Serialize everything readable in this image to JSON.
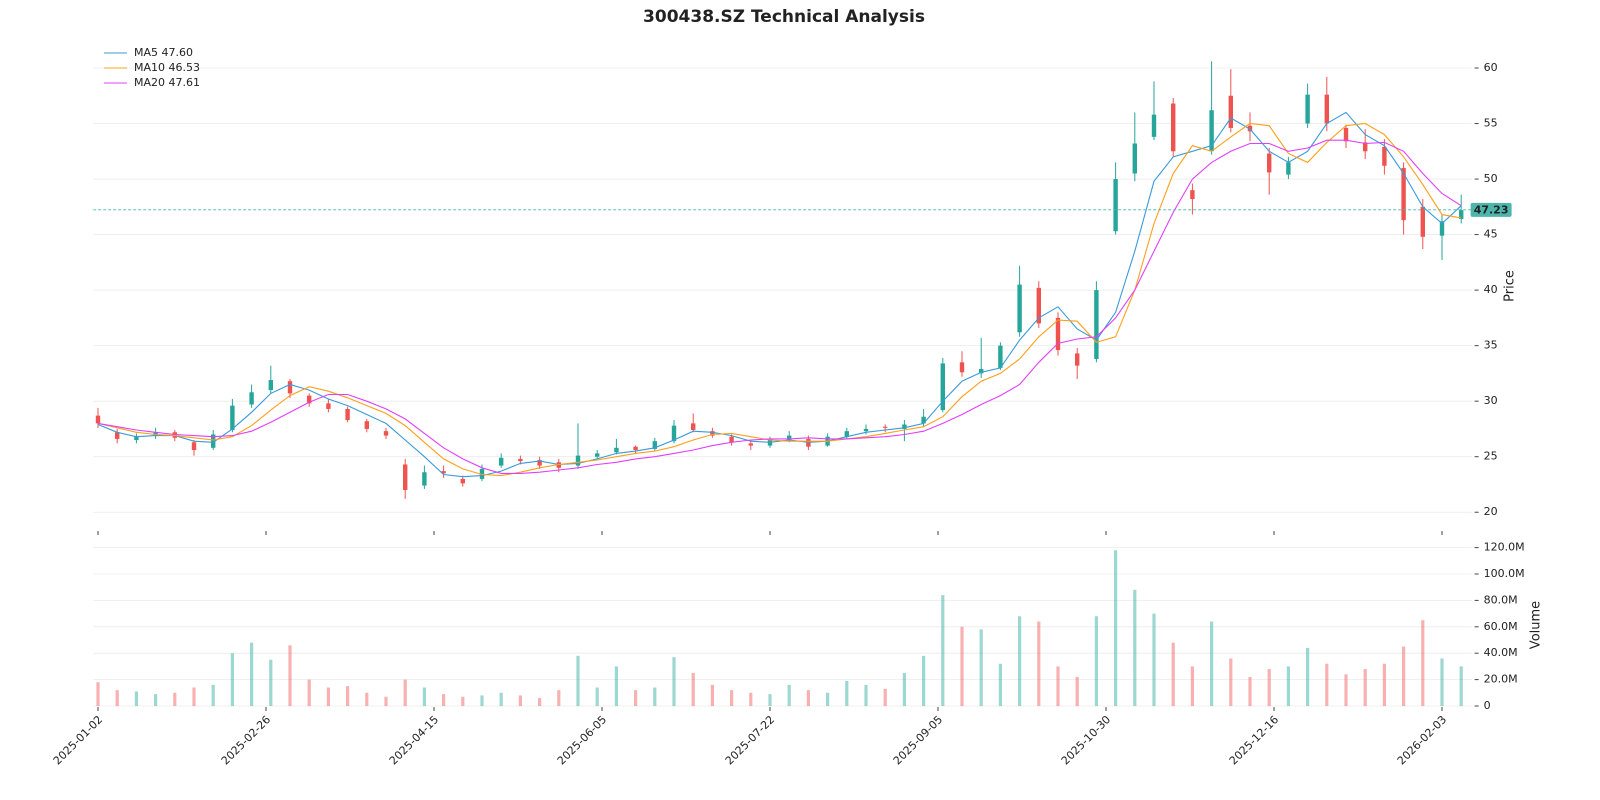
{
  "chart_data": [
    {
      "type": "candlestick",
      "title": "300438.SZ Technical Analysis",
      "y_label": "Price",
      "up_color": "#26a69a",
      "down_color": "#ef5350",
      "grid": true,
      "xlim": [
        -1,
        287
      ],
      "ylim": [
        18.4,
        60.9
      ],
      "yticks": [
        20,
        25,
        30,
        35,
        40,
        45,
        50,
        55,
        60
      ],
      "x": [
        0,
        4,
        8,
        12,
        16,
        20,
        24,
        28,
        32,
        36,
        40,
        44,
        48,
        52,
        56,
        60,
        64,
        68,
        72,
        76,
        80,
        84,
        88,
        92,
        96,
        100,
        104,
        108,
        112,
        116,
        120,
        124,
        128,
        132,
        136,
        140,
        144,
        148,
        152,
        156,
        160,
        164,
        168,
        172,
        176,
        180,
        184,
        188,
        192,
        196,
        200,
        204,
        208,
        212,
        216,
        220,
        224,
        228,
        232,
        236,
        240,
        244,
        248,
        252,
        256,
        260,
        264,
        268,
        272,
        276,
        280,
        284
      ],
      "open": [
        28.7,
        27.2,
        26.5,
        26.9,
        27.2,
        26.3,
        25.8,
        27.4,
        29.7,
        31.0,
        31.8,
        30.5,
        29.8,
        29.3,
        28.2,
        27.3,
        24.3,
        22.4,
        23.7,
        23.0,
        23.0,
        24.2,
        24.8,
        24.7,
        24.5,
        24.2,
        25.0,
        25.4,
        25.9,
        25.7,
        26.4,
        28.0,
        27.3,
        26.8,
        26.2,
        26.0,
        26.5,
        26.6,
        26.0,
        26.8,
        27.3,
        27.7,
        27.5,
        28.0,
        29.2,
        33.5,
        32.5,
        33.0,
        36.2,
        40.2,
        37.5,
        34.3,
        33.8,
        45.3,
        50.5,
        53.8,
        56.8,
        49.0,
        52.5,
        57.5,
        54.8,
        52.3,
        50.4,
        55.0,
        57.6,
        54.6,
        53.3,
        52.9,
        51.0,
        47.5,
        44.9,
        46.4
      ],
      "high": [
        29.4,
        27.5,
        27.1,
        27.6,
        27.4,
        26.5,
        27.4,
        30.2,
        31.5,
        33.2,
        32.0,
        30.7,
        30.2,
        29.5,
        28.4,
        27.6,
        24.8,
        24.2,
        24.2,
        23.3,
        24.3,
        25.3,
        25.1,
        25.0,
        24.8,
        28.0,
        25.6,
        26.6,
        26.0,
        26.7,
        28.3,
        28.9,
        27.6,
        27.0,
        26.5,
        26.8,
        27.3,
        26.9,
        27.1,
        27.6,
        27.9,
        27.9,
        28.3,
        29.3,
        33.9,
        34.5,
        35.7,
        35.3,
        42.2,
        40.8,
        38.0,
        34.8,
        40.8,
        51.5,
        56.0,
        58.8,
        57.3,
        49.6,
        60.6,
        59.9,
        56.0,
        52.8,
        52.0,
        58.6,
        59.2,
        54.9,
        54.5,
        53.6,
        51.5,
        48.2,
        46.8,
        48.6
      ],
      "low": [
        27.6,
        26.2,
        26.2,
        26.6,
        26.4,
        25.1,
        25.6,
        27.2,
        29.4,
        30.7,
        30.3,
        29.5,
        29.0,
        28.1,
        27.2,
        26.6,
        21.2,
        22.1,
        23.1,
        22.3,
        22.8,
        24.0,
        24.3,
        23.9,
        23.6,
        23.9,
        24.8,
        25.2,
        25.3,
        25.5,
        26.2,
        27.2,
        26.7,
        26.0,
        25.6,
        25.8,
        26.3,
        25.6,
        25.9,
        26.6,
        27.0,
        27.2,
        26.4,
        27.7,
        29.0,
        32.2,
        32.1,
        32.8,
        35.8,
        36.6,
        34.1,
        32.0,
        33.5,
        45.0,
        49.8,
        53.5,
        52.0,
        46.8,
        52.2,
        54.2,
        53.4,
        48.6,
        50.0,
        54.6,
        54.3,
        52.8,
        51.8,
        50.4,
        45.0,
        43.7,
        42.7,
        46.0
      ],
      "close": [
        28.0,
        26.6,
        26.8,
        27.2,
        26.7,
        25.6,
        27.0,
        29.6,
        30.8,
        31.9,
        30.7,
        29.8,
        29.3,
        28.3,
        27.5,
        26.9,
        22.0,
        23.6,
        23.5,
        22.6,
        23.9,
        24.9,
        24.6,
        24.2,
        24.0,
        25.1,
        25.3,
        25.8,
        25.6,
        26.4,
        27.8,
        27.4,
        26.9,
        26.3,
        26.0,
        26.6,
        26.9,
        25.9,
        26.8,
        27.3,
        27.5,
        27.6,
        27.9,
        28.6,
        33.4,
        32.6,
        32.9,
        35.0,
        40.5,
        37.0,
        34.6,
        33.2,
        40.0,
        50.0,
        53.2,
        55.8,
        52.5,
        48.2,
        56.2,
        54.6,
        54.3,
        50.6,
        51.5,
        57.6,
        55.0,
        53.4,
        52.5,
        51.2,
        46.3,
        44.8,
        46.2,
        47.2
      ],
      "series": [
        {
          "name": "MA5 47.60",
          "color": "#3a9ad9",
          "values": [
            27.9,
            27.2,
            26.8,
            26.9,
            26.9,
            26.4,
            26.3,
            27.5,
            29.0,
            30.7,
            31.5,
            31.0,
            30.2,
            29.6,
            28.8,
            28.0,
            26.5,
            25.0,
            23.4,
            23.2,
            23.3,
            23.7,
            24.4,
            24.6,
            24.3,
            24.4,
            24.8,
            25.3,
            25.5,
            25.8,
            26.5,
            27.3,
            27.2,
            26.9,
            26.4,
            26.3,
            26.5,
            26.3,
            26.4,
            26.8,
            27.2,
            27.4,
            27.6,
            28.0,
            30.0,
            31.8,
            32.6,
            33.0,
            35.5,
            37.5,
            38.5,
            36.5,
            35.5,
            38.0,
            43.5,
            49.8,
            52.0,
            52.5,
            53.0,
            55.5,
            54.5,
            52.5,
            51.5,
            52.5,
            55.0,
            56.0,
            54.0,
            53.0,
            50.5,
            47.5,
            46.0,
            47.6
          ]
        },
        {
          "name": "MA10 46.53",
          "color": "#ff9f1c",
          "values": [
            28.0,
            27.6,
            27.2,
            27.0,
            26.9,
            26.7,
            26.5,
            26.8,
            27.8,
            29.2,
            30.5,
            31.3,
            30.9,
            30.3,
            29.6,
            28.9,
            27.8,
            26.3,
            24.8,
            23.9,
            23.4,
            23.3,
            23.6,
            24.0,
            24.3,
            24.5,
            24.7,
            25.0,
            25.3,
            25.5,
            25.9,
            26.5,
            27.0,
            27.1,
            26.8,
            26.5,
            26.4,
            26.4,
            26.4,
            26.6,
            26.8,
            27.1,
            27.4,
            27.7,
            28.6,
            30.4,
            31.8,
            32.5,
            33.8,
            35.8,
            37.3,
            37.2,
            35.3,
            35.8,
            40.0,
            46.0,
            50.5,
            53.0,
            52.5,
            53.8,
            55.0,
            54.8,
            52.3,
            51.5,
            53.3,
            54.8,
            55.0,
            54.0,
            52.0,
            49.5,
            46.8,
            46.5
          ]
        },
        {
          "name": "MA20 47.61",
          "color": "#e040fb",
          "values": [
            28.0,
            27.7,
            27.4,
            27.2,
            27.0,
            26.9,
            26.8,
            26.9,
            27.3,
            28.1,
            29.0,
            29.9,
            30.6,
            30.6,
            30.0,
            29.3,
            28.4,
            27.1,
            25.8,
            24.8,
            24.0,
            23.5,
            23.5,
            23.6,
            23.8,
            24.0,
            24.3,
            24.5,
            24.8,
            25.0,
            25.3,
            25.6,
            26.0,
            26.3,
            26.5,
            26.6,
            26.6,
            26.7,
            26.6,
            26.6,
            26.7,
            26.8,
            27.0,
            27.3,
            28.0,
            28.8,
            29.7,
            30.5,
            31.5,
            33.5,
            35.2,
            35.6,
            35.8,
            37.5,
            40.0,
            43.5,
            47.0,
            50.0,
            51.5,
            52.5,
            53.2,
            53.2,
            52.5,
            52.8,
            53.5,
            53.5,
            53.2,
            53.3,
            52.5,
            50.5,
            48.7,
            47.6
          ]
        }
      ],
      "last_price": 47.23,
      "last_price_color": "#4db6ac"
    },
    {
      "type": "volume",
      "y_label": "Volume",
      "grid": true,
      "xlim": [
        -1,
        287
      ],
      "ylim": [
        0,
        125000000
      ],
      "yticks": [
        0,
        {
          "value": 20000000,
          "label": "20.0M"
        },
        {
          "value": 40000000,
          "label": "40.0M"
        },
        {
          "value": 60000000,
          "label": "60.0M"
        },
        {
          "value": 80000000,
          "label": "80.0M"
        },
        {
          "value": 100000000,
          "label": "100.0M"
        },
        {
          "value": 120000000,
          "label": "120.0M"
        }
      ],
      "xticks": [
        {
          "value": 0,
          "label": "2025-01-02"
        },
        {
          "value": 35,
          "label": "2025-02-26"
        },
        {
          "value": 70,
          "label": "2025-04-15"
        },
        {
          "value": 105,
          "label": "2025-06-05"
        },
        {
          "value": 140,
          "label": "2025-07-22"
        },
        {
          "value": 175,
          "label": "2025-09-05"
        },
        {
          "value": 210,
          "label": "2025-10-30"
        },
        {
          "value": 245,
          "label": "2025-12-16"
        },
        {
          "value": 280,
          "label": "2026-02-03"
        }
      ],
      "values": [
        18000000,
        12000000,
        11000000,
        9000000,
        10000000,
        14000000,
        16000000,
        40000000,
        48000000,
        35000000,
        46000000,
        20000000,
        14000000,
        15000000,
        10000000,
        7000000,
        20000000,
        14000000,
        9000000,
        7000000,
        8000000,
        10000000,
        8000000,
        6000000,
        12000000,
        38000000,
        14000000,
        30000000,
        12000000,
        14000000,
        37000000,
        25000000,
        16000000,
        12000000,
        10000000,
        9000000,
        16000000,
        12000000,
        10000000,
        19000000,
        16000000,
        13000000,
        25000000,
        38000000,
        84000000,
        60000000,
        58000000,
        32000000,
        68000000,
        64000000,
        30000000,
        22000000,
        68000000,
        118000000,
        88000000,
        70000000,
        48000000,
        30000000,
        64000000,
        36000000,
        22000000,
        28000000,
        30000000,
        44000000,
        32000000,
        24000000,
        28000000,
        32000000,
        45000000,
        65000000,
        36000000,
        30000000
      ]
    }
  ]
}
